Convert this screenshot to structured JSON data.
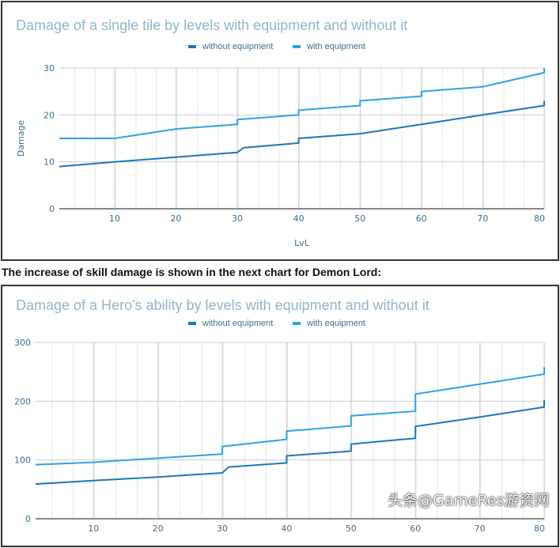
{
  "caption": "The increase of skill damage is shown in the next chart for Demon Lord:",
  "watermark": "头条@GameRes游资网",
  "colors": {
    "without": "#1b78b8",
    "with": "#2ea3e3",
    "title": "#8fb6c9",
    "axis_text": "#3a6f8f"
  },
  "chart_data": [
    {
      "type": "line",
      "title": "Damage of a single tile by levels with equipment and without it",
      "xlabel": "LvL",
      "ylabel": "Damage",
      "xlim": [
        1,
        80
      ],
      "ylim": [
        0,
        30
      ],
      "xticks": [
        10,
        20,
        30,
        40,
        50,
        60,
        70,
        80
      ],
      "yticks": [
        0,
        10,
        20,
        30
      ],
      "grid": true,
      "legend_position": "top-center",
      "series": [
        {
          "name": "without equipment",
          "key": "without",
          "points": [
            [
              1,
              9
            ],
            [
              10,
              10
            ],
            [
              20,
              11
            ],
            [
              30,
              12
            ],
            [
              31,
              13
            ],
            [
              40,
              14
            ],
            [
              40,
              15
            ],
            [
              50,
              16
            ],
            [
              60,
              18
            ],
            [
              70,
              20
            ],
            [
              80,
              22
            ],
            [
              80,
              23
            ]
          ]
        },
        {
          "name": "with equipment",
          "key": "with",
          "points": [
            [
              1,
              15
            ],
            [
              10,
              15
            ],
            [
              20,
              17
            ],
            [
              30,
              18
            ],
            [
              30,
              19
            ],
            [
              40,
              20
            ],
            [
              40,
              21
            ],
            [
              50,
              22
            ],
            [
              50,
              23
            ],
            [
              60,
              24
            ],
            [
              60,
              25
            ],
            [
              70,
              26
            ],
            [
              80,
              29
            ],
            [
              80,
              30
            ]
          ]
        }
      ]
    },
    {
      "type": "line",
      "title": "Damage of a Hero's ability by levels with equipment and without it",
      "xlabel": "",
      "ylabel": "",
      "xlim": [
        1,
        80
      ],
      "ylim": [
        0,
        300
      ],
      "xticks": [
        10,
        20,
        30,
        40,
        50,
        60,
        70,
        80
      ],
      "yticks": [
        0,
        100,
        200,
        300
      ],
      "grid": true,
      "legend_position": "top-center",
      "series": [
        {
          "name": "without equipment",
          "key": "without",
          "points": [
            [
              1,
              59
            ],
            [
              10,
              65
            ],
            [
              20,
              71
            ],
            [
              30,
              78
            ],
            [
              31,
              88
            ],
            [
              40,
              95
            ],
            [
              40,
              107
            ],
            [
              50,
              115
            ],
            [
              50,
              127
            ],
            [
              60,
              137
            ],
            [
              60,
              157
            ],
            [
              70,
              173
            ],
            [
              80,
              190
            ],
            [
              80,
              202
            ]
          ]
        },
        {
          "name": "with equipment",
          "key": "with",
          "points": [
            [
              1,
              92
            ],
            [
              10,
              96
            ],
            [
              20,
              103
            ],
            [
              30,
              110
            ],
            [
              30,
              123
            ],
            [
              40,
              135
            ],
            [
              40,
              149
            ],
            [
              50,
              158
            ],
            [
              50,
              175
            ],
            [
              60,
              183
            ],
            [
              60,
              212
            ],
            [
              70,
              229
            ],
            [
              80,
              246
            ],
            [
              80,
              258
            ]
          ]
        }
      ]
    }
  ]
}
